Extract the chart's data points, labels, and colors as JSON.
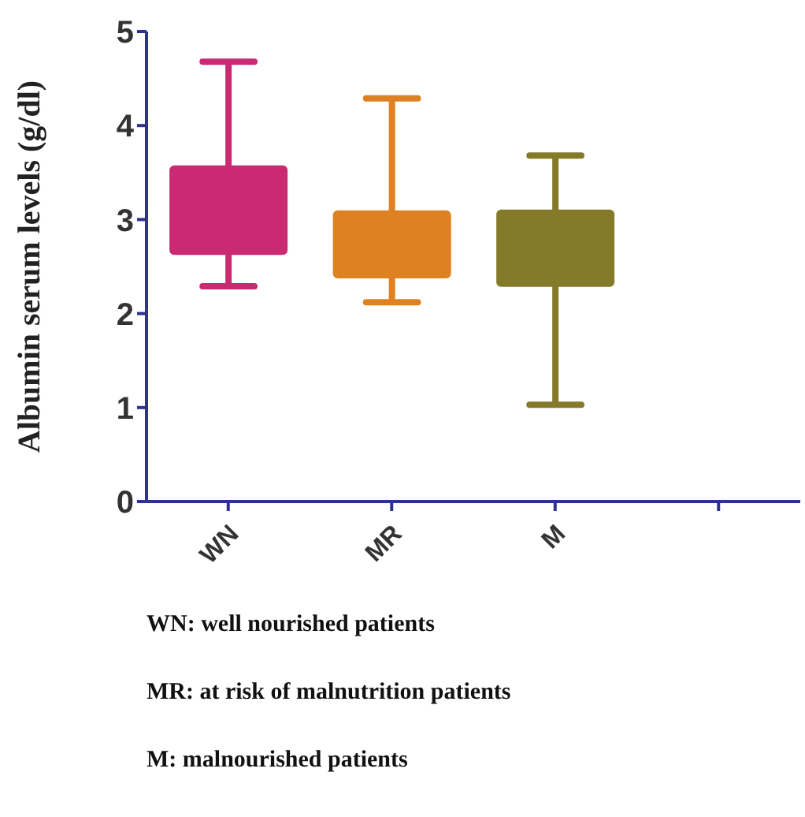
{
  "chart_data": {
    "type": "box",
    "ylabel": "Albumin serum levels (g/dl)",
    "categories": [
      "WN",
      "MR",
      "M",
      null
    ],
    "boxes": [
      {
        "low": 2.29,
        "q1": 2.64,
        "q3": 3.56,
        "high": 4.68
      },
      {
        "low": 2.12,
        "q1": 2.39,
        "q3": 3.08,
        "high": 4.29
      },
      {
        "low": 1.03,
        "q1": 2.3,
        "q3": 3.09,
        "high": 3.68
      },
      null
    ],
    "colors": [
      "#c92a72",
      "#de8123",
      "#857a2a",
      null
    ],
    "ylim": [
      0,
      5
    ],
    "yticks": [
      0,
      1,
      2,
      3,
      4,
      5
    ],
    "grid": false,
    "legend": false,
    "annotations": [
      "WN: well nourished patients",
      "MR: at risk of malnutrition patients",
      "M: malnourished patients"
    ]
  }
}
